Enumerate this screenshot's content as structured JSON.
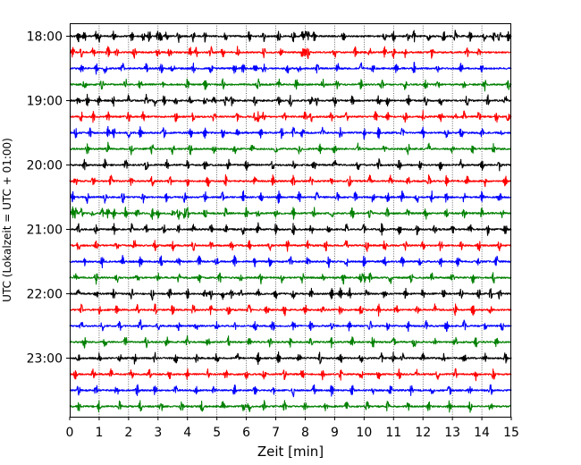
{
  "chart_data": {
    "type": "line",
    "subtype": "helicorder",
    "xlabel": "Zeit  [min]",
    "ylabel": "UTC (Lokalzeit = UTC + 01:00)",
    "xlim": [
      0,
      15
    ],
    "x_ticks": [
      "0",
      "1",
      "2",
      "3",
      "4",
      "5",
      "6",
      "7",
      "8",
      "9",
      "10",
      "11",
      "12",
      "13",
      "14",
      "15"
    ],
    "y_ticks": [
      "18:00",
      "19:00",
      "20:00",
      "21:00",
      "22:00",
      "23:00"
    ],
    "trace_minutes": 15,
    "start_time": "18:00",
    "grid": {
      "x": "dotted vertical at each minute",
      "y": "off"
    },
    "trace_color_cycle": [
      "#000000",
      "#ff0000",
      "#0000ff",
      "#008000"
    ],
    "traces": [
      {
        "start": "18:00",
        "color": "#000000",
        "events": [
          0.3,
          0.5,
          0.9,
          1.0,
          1.5,
          2.1,
          2.5,
          2.7,
          3.0,
          3.1,
          3.3,
          3.7,
          4.2,
          4.6,
          5.3,
          6.1,
          6.6,
          7.1,
          7.6,
          7.9,
          8.0,
          8.1,
          8.3,
          9.3,
          10.7,
          11.0,
          11.5,
          11.7,
          12.2,
          12.7,
          13.1,
          13.6,
          14.1,
          14.4,
          14.6,
          14.9
        ]
      },
      {
        "start": "18:15",
        "color": "#ff0000",
        "events": [
          0.1,
          0.4,
          0.8,
          1.3,
          1.6,
          2.2,
          3.0,
          3.4,
          4.1,
          4.3,
          4.8,
          5.2,
          5.7,
          6.6,
          7.2,
          7.9,
          8.0,
          8.1,
          9.0,
          9.7,
          10.2,
          10.7,
          11.0,
          11.4,
          12.3,
          13.5,
          13.9
        ]
      },
      {
        "start": "18:30",
        "color": "#0000ff",
        "events": [
          0.4,
          0.9,
          1.2,
          1.8,
          2.6,
          3.1,
          3.5,
          4.2,
          4.8,
          5.6,
          5.9,
          6.3,
          6.6,
          7.4,
          7.8,
          8.4,
          9.1,
          9.9,
          10.3,
          11.1,
          11.7,
          12.5,
          13.3,
          14.0
        ]
      },
      {
        "start": "18:45",
        "color": "#008000",
        "events": [
          0.5,
          1.1,
          1.9,
          2.4,
          3.2,
          4.0,
          4.6,
          5.2,
          6.4,
          7.1,
          7.7,
          8.6,
          9.1,
          9.9,
          10.6,
          11.4,
          12.1,
          12.5,
          13.4,
          14.1,
          14.9
        ]
      },
      {
        "start": "19:00",
        "color": "#000000",
        "events": [
          0.3,
          0.6,
          1.0,
          1.5,
          2.0,
          2.6,
          2.9,
          3.2,
          3.6,
          4.1,
          4.6,
          4.9,
          5.3,
          5.5,
          6.3,
          7.1,
          7.5,
          8.2,
          8.4,
          9.0,
          9.6,
          10.5,
          10.8,
          11.5,
          12.1,
          12.6,
          13.5,
          14.2,
          14.8
        ]
      },
      {
        "start": "19:15",
        "color": "#ff0000",
        "events": [
          0.4,
          0.8,
          1.3,
          2.0,
          2.5,
          3.6,
          4.2,
          4.9,
          5.7,
          6.3,
          6.4,
          6.6,
          7.3,
          8.0,
          8.2,
          8.9,
          9.4,
          10.4,
          10.8,
          11.4,
          12.0,
          12.6,
          13.1,
          13.4,
          13.9,
          14.5,
          14.9
        ]
      },
      {
        "start": "19:30",
        "color": "#0000ff",
        "events": [
          0.2,
          0.7,
          1.3,
          1.5,
          2.0,
          2.4,
          3.2,
          4.1,
          4.6,
          5.2,
          5.7,
          6.5,
          7.2,
          7.6,
          7.9,
          8.6,
          9.2,
          10.0,
          10.5,
          11.3,
          12.0,
          12.8,
          13.3,
          14.0,
          14.7
        ]
      },
      {
        "start": "19:45",
        "color": "#008000",
        "events": [
          0.6,
          1.3,
          2.1,
          2.8,
          3.5,
          4.1,
          4.9,
          5.6,
          6.2,
          7.0,
          7.8,
          8.5,
          9.0,
          9.8,
          10.7,
          11.5,
          12.2,
          13.0,
          13.7,
          14.4
        ]
      },
      {
        "start": "20:00",
        "color": "#000000",
        "events": [
          0.5,
          1.2,
          1.9,
          2.6,
          3.3,
          4.0,
          4.6,
          5.4,
          6.0,
          6.9,
          7.6,
          8.3,
          9.0,
          9.8,
          10.5,
          11.2,
          11.9,
          12.6,
          13.3,
          14.0,
          14.6
        ]
      },
      {
        "start": "20:15",
        "color": "#ff0000",
        "events": [
          0.2,
          0.8,
          1.4,
          2.1,
          2.8,
          3.4,
          4.0,
          4.7,
          5.3,
          6.3,
          6.9,
          7.6,
          8.2,
          8.9,
          9.5,
          10.2,
          10.9,
          11.5,
          12.2,
          12.8,
          13.5,
          14.1,
          14.8
        ]
      },
      {
        "start": "20:30",
        "color": "#0000ff",
        "events": [
          0.1,
          0.6,
          1.2,
          1.8,
          2.5,
          3.3,
          3.9,
          4.6,
          5.2,
          5.9,
          6.5,
          7.1,
          7.8,
          8.4,
          9.1,
          9.7,
          10.3,
          10.8,
          11.3,
          11.8,
          12.3,
          12.8,
          13.4,
          14.0,
          14.6
        ]
      },
      {
        "start": "20:45",
        "color": "#008000",
        "events": [
          0.1,
          0.2,
          0.4,
          0.8,
          1.1,
          1.3,
          1.5,
          1.9,
          2.3,
          2.8,
          3.0,
          3.5,
          3.7,
          3.9,
          4.0,
          4.6,
          5.3,
          6.0,
          6.4,
          7.0,
          7.6,
          8.3,
          8.9,
          9.6,
          10.2,
          10.8,
          11.5,
          12.1,
          12.8,
          13.4,
          14.0,
          14.7
        ]
      },
      {
        "start": "21:00",
        "color": "#000000",
        "events": [
          0.3,
          0.9,
          1.5,
          2.1,
          2.6,
          3.2,
          3.7,
          4.2,
          4.8,
          5.3,
          5.9,
          6.4,
          7.0,
          7.6,
          8.2,
          8.8,
          9.4,
          10.0,
          10.6,
          11.2,
          11.8,
          12.4,
          13.0,
          13.6,
          14.2,
          14.8
        ]
      },
      {
        "start": "21:15",
        "color": "#ff0000",
        "events": [
          0.3,
          0.9,
          1.6,
          2.2,
          2.9,
          3.5,
          4.2,
          4.8,
          5.5,
          6.1,
          6.8,
          7.4,
          8.1,
          8.7,
          9.4,
          10.1,
          10.7,
          11.4,
          12.0,
          12.6,
          13.3,
          13.9,
          14.6
        ]
      },
      {
        "start": "21:30",
        "color": "#0000ff",
        "events": [
          0.5,
          1.1,
          1.8,
          2.4,
          3.1,
          3.7,
          4.4,
          5.0,
          5.6,
          6.3,
          6.8,
          7.5,
          8.1,
          8.8,
          9.4,
          10.0,
          10.7,
          11.3,
          11.9,
          12.6,
          13.2,
          13.9,
          14.5
        ]
      },
      {
        "start": "21:45",
        "color": "#008000",
        "events": [
          0.2,
          0.9,
          1.6,
          2.3,
          3.0,
          3.7,
          4.4,
          5.1,
          5.8,
          6.5,
          7.2,
          7.9,
          8.6,
          9.3,
          9.9,
          10.0,
          10.2,
          10.9,
          11.6,
          12.3,
          13.0,
          13.7,
          14.4
        ]
      },
      {
        "start": "22:00",
        "color": "#000000",
        "events": [
          0.3,
          0.9,
          1.5,
          2.1,
          2.8,
          3.4,
          4.0,
          4.6,
          4.8,
          5.2,
          5.5,
          5.8,
          6.4,
          7.0,
          7.6,
          8.2,
          8.9,
          9.2,
          9.5,
          10.1,
          10.7,
          11.4,
          12.0,
          12.7,
          13.3,
          13.9,
          14.3,
          14.6
        ]
      },
      {
        "start": "22:15",
        "color": "#ff0000",
        "events": [
          0.4,
          1.0,
          1.6,
          2.3,
          2.9,
          3.5,
          4.2,
          4.8,
          5.4,
          6.1,
          6.7,
          7.3,
          8.0,
          8.6,
          9.2,
          9.9,
          10.5,
          11.1,
          11.8,
          12.4,
          13.1,
          13.7,
          14.3
        ]
      },
      {
        "start": "22:30",
        "color": "#0000ff",
        "events": [
          0.4,
          1.1,
          1.7,
          2.4,
          3.0,
          3.7,
          4.3,
          5.0,
          5.6,
          6.3,
          6.9,
          7.6,
          8.2,
          8.9,
          9.5,
          10.2,
          10.8,
          11.5,
          12.1,
          12.8,
          13.4,
          14.1,
          14.7
        ]
      },
      {
        "start": "22:45",
        "color": "#008000",
        "events": [
          0.5,
          1.2,
          1.9,
          2.6,
          3.3,
          4.0,
          4.7,
          5.4,
          6.1,
          6.8,
          7.5,
          8.2,
          8.9,
          9.6,
          10.3,
          11.0,
          11.7,
          12.4,
          13.1,
          13.8,
          14.5
        ]
      },
      {
        "start": "23:00",
        "color": "#000000",
        "events": [
          0.3,
          1.0,
          1.7,
          2.2,
          2.9,
          3.6,
          4.3,
          5.0,
          5.7,
          6.4,
          7.1,
          7.8,
          8.5,
          9.2,
          9.9,
          10.6,
          11.0,
          11.3,
          12.0,
          12.7,
          13.4,
          14.1,
          14.8
        ]
      },
      {
        "start": "23:15",
        "color": "#ff0000",
        "events": [
          0.2,
          0.8,
          1.4,
          2.1,
          2.7,
          3.4,
          4.0,
          4.7,
          5.3,
          6.0,
          6.6,
          7.3,
          7.9,
          8.6,
          9.2,
          9.9,
          10.5,
          11.2,
          11.8,
          12.5,
          13.1,
          13.8,
          14.4
        ]
      },
      {
        "start": "23:30",
        "color": "#0000ff",
        "events": [
          0.3,
          0.9,
          1.6,
          2.3,
          2.9,
          3.6,
          4.3,
          4.9,
          5.6,
          6.3,
          6.9,
          7.6,
          8.3,
          8.9,
          9.6,
          10.3,
          10.9,
          11.6,
          12.3,
          12.9,
          13.6,
          14.3
        ]
      },
      {
        "start": "23:45",
        "color": "#008000",
        "events": [
          0.3,
          1.0,
          1.7,
          2.4,
          3.1,
          3.8,
          4.5,
          5.2,
          5.9,
          6.1,
          6.6,
          7.3,
          8.0,
          8.7,
          9.4,
          10.1,
          10.8,
          11.5,
          12.2,
          12.9,
          13.6,
          14.3
        ]
      }
    ]
  }
}
